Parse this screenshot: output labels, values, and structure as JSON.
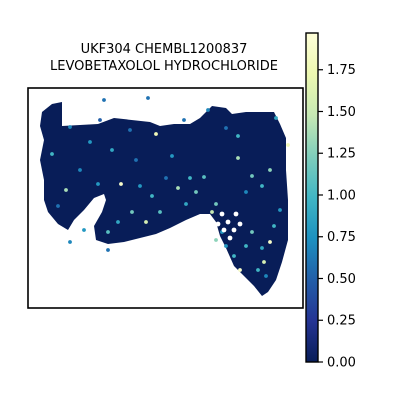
{
  "chart_data": {
    "type": "scatter",
    "title_lines": [
      "UKF304 CHEMBL1200837",
      "LEVOBETAXOLOL HYDROCHLORIDE"
    ],
    "xlabel": "",
    "ylabel": "",
    "colormap": "YlGnBu",
    "colormap_stops": [
      "#081d58",
      "#253494",
      "#225ea8",
      "#1d91c0",
      "#41b6c4",
      "#7fcdbb",
      "#c7e9b4",
      "#edf8b1",
      "#ffffd9"
    ],
    "color_range": [
      0,
      1.97
    ],
    "colorbar_ticks": [
      "0.00",
      "0.25",
      "0.50",
      "0.75",
      "1.00",
      "1.25",
      "1.50",
      "1.75"
    ],
    "grid": false,
    "legend": "colorbar-right",
    "dominant_value_color": "#081d58"
  }
}
